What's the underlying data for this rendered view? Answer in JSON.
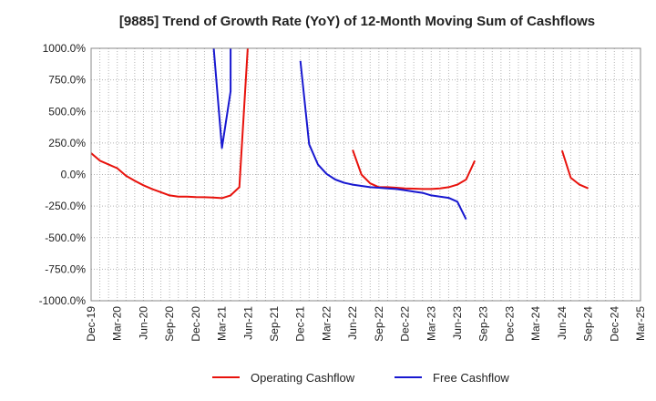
{
  "chart_data": {
    "type": "line",
    "title": "[9885]  Trend of Growth Rate (YoY) of 12-Month Moving Sum of Cashflows",
    "xlabel": "",
    "ylabel": "",
    "ylim": [
      -1000,
      1000
    ],
    "y_ticks": [
      "1000.0%",
      "750.0%",
      "500.0%",
      "250.0%",
      "0.0%",
      "-250.0%",
      "-500.0%",
      "-750.0%",
      "-1000.0%"
    ],
    "y_tick_values": [
      1000,
      750,
      500,
      250,
      0,
      -250,
      -500,
      -750,
      -1000
    ],
    "x_start": "Dec-19",
    "x_end": "Mar-25",
    "x_ticks": [
      "Dec-19",
      "Mar-20",
      "Jun-20",
      "Sep-20",
      "Dec-20",
      "Mar-21",
      "Jun-21",
      "Sep-21",
      "Dec-21",
      "Mar-22",
      "Jun-22",
      "Sep-22",
      "Dec-22",
      "Mar-23",
      "Jun-23",
      "Sep-23",
      "Dec-23",
      "Mar-24",
      "Jun-24",
      "Sep-24",
      "Dec-24",
      "Mar-25"
    ],
    "grid": true,
    "legend_position": "bottom",
    "series": [
      {
        "name": "Operating Cashflow",
        "color": "#e8120c",
        "segments": [
          [
            [
              "Dec-19",
              170
            ],
            [
              "Jan-20",
              110
            ],
            [
              "Feb-20",
              80
            ],
            [
              "Mar-20",
              50
            ],
            [
              "Apr-20",
              -10
            ],
            [
              "May-20",
              -50
            ],
            [
              "Jun-20",
              -85
            ],
            [
              "Jul-20",
              -115
            ],
            [
              "Aug-20",
              -140
            ],
            [
              "Sep-20",
              -165
            ],
            [
              "Oct-20",
              -175
            ],
            [
              "Nov-20",
              -175
            ],
            [
              "Dec-20",
              -178
            ],
            [
              "Jan-21",
              -180
            ],
            [
              "Feb-21",
              -183
            ],
            [
              "Mar-21",
              -187
            ],
            [
              "Apr-21",
              -165
            ],
            [
              "May-21",
              -100
            ],
            [
              "Jun-21",
              1050
            ]
          ],
          [
            [
              "Jun-22",
              195
            ],
            [
              "Jul-22",
              0
            ],
            [
              "Aug-22",
              -70
            ],
            [
              "Sep-22",
              -100
            ],
            [
              "Oct-22",
              -100
            ],
            [
              "Nov-22",
              -105
            ],
            [
              "Dec-22",
              -110
            ],
            [
              "Jan-23",
              -112
            ],
            [
              "Feb-23",
              -115
            ],
            [
              "Mar-23",
              -115
            ],
            [
              "Apr-23",
              -110
            ],
            [
              "May-23",
              -100
            ],
            [
              "Jun-23",
              -80
            ],
            [
              "Jul-23",
              -40
            ],
            [
              "Aug-23",
              110
            ]
          ],
          [
            [
              "Jun-24",
              190
            ],
            [
              "Jul-24",
              -25
            ],
            [
              "Aug-24",
              -80
            ],
            [
              "Sep-24",
              -110
            ]
          ]
        ]
      },
      {
        "name": "Free Cashflow",
        "color": "#1818d0",
        "segments": [
          [
            [
              "Feb-21",
              1050
            ],
            [
              "Mar-21",
              210
            ],
            [
              "Apr-21",
              660
            ],
            [
              "Apr-21",
              1050
            ]
          ],
          [
            [
              "Dec-21",
              900
            ],
            [
              "Jan-22",
              240
            ],
            [
              "Feb-22",
              80
            ],
            [
              "Mar-22",
              5
            ],
            [
              "Apr-22",
              -40
            ],
            [
              "May-22",
              -65
            ],
            [
              "Jun-22",
              -80
            ],
            [
              "Jul-22",
              -90
            ],
            [
              "Aug-22",
              -100
            ],
            [
              "Sep-22",
              -105
            ],
            [
              "Oct-22",
              -110
            ],
            [
              "Nov-22",
              -115
            ],
            [
              "Dec-22",
              -125
            ],
            [
              "Jan-23",
              -135
            ],
            [
              "Feb-23",
              -145
            ],
            [
              "Mar-23",
              -165
            ],
            [
              "Apr-23",
              -175
            ],
            [
              "May-23",
              -185
            ],
            [
              "Jun-23",
              -215
            ],
            [
              "Jul-23",
              -355
            ]
          ]
        ]
      }
    ]
  }
}
